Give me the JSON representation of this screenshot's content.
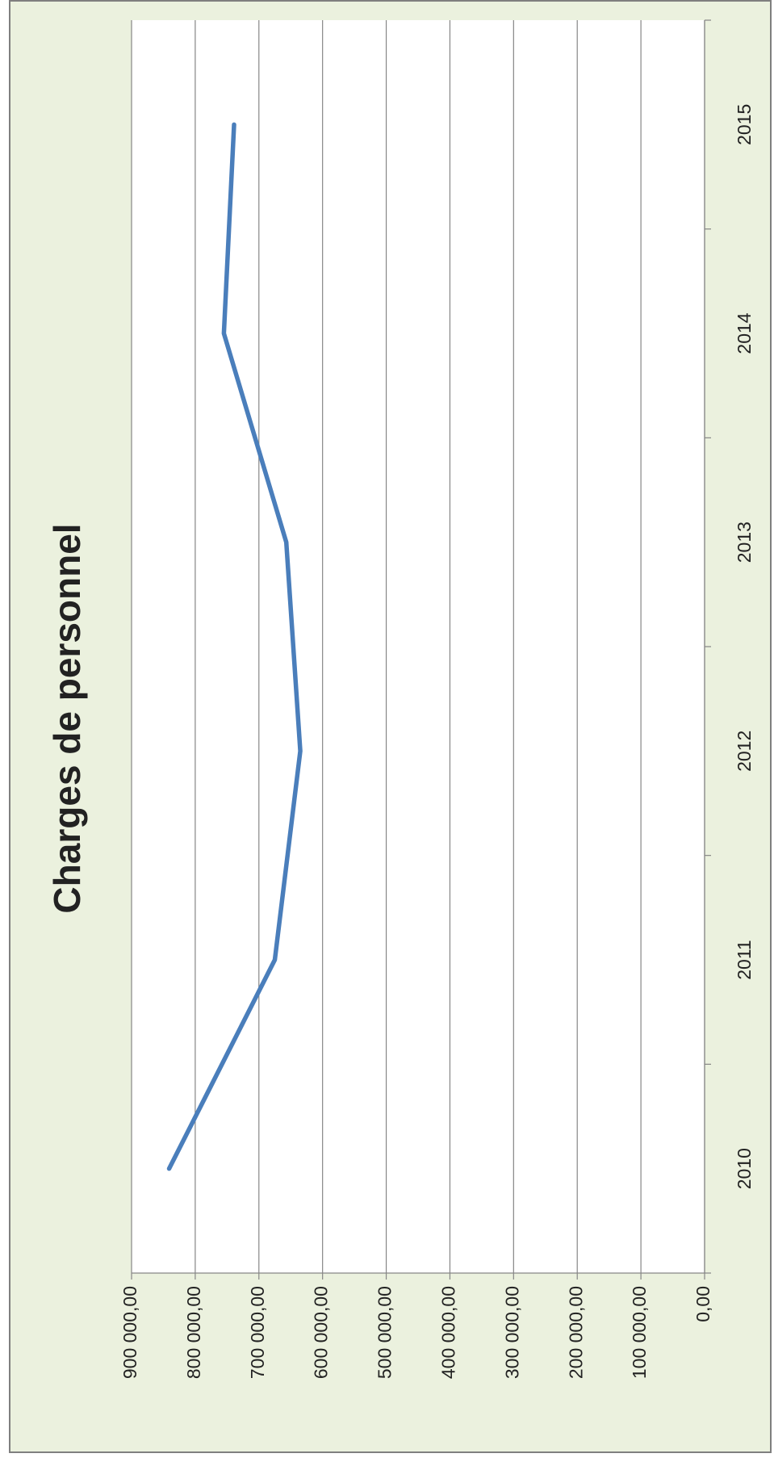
{
  "chart_data": {
    "type": "line",
    "title": "Charges de personnel",
    "categories": [
      "2010",
      "2011",
      "2012",
      "2013",
      "2014",
      "2015"
    ],
    "values": [
      841000,
      675000,
      635000,
      657000,
      755000,
      739000
    ],
    "color": "#4a7ebb",
    "ylim": [
      0,
      900000
    ],
    "yticks": [
      {
        "value": 0,
        "label": "0,00"
      },
      {
        "value": 100000,
        "label": "100 000,00"
      },
      {
        "value": 200000,
        "label": "200 000,00"
      },
      {
        "value": 300000,
        "label": "300 000,00"
      },
      {
        "value": 400000,
        "label": "400 000,00"
      },
      {
        "value": 500000,
        "label": "500 000,00"
      },
      {
        "value": 600000,
        "label": "600 000,00"
      },
      {
        "value": 700000,
        "label": "700 000,00"
      },
      {
        "value": 800000,
        "label": "800 000,00"
      },
      {
        "value": 900000,
        "label": "900 000,00"
      }
    ],
    "grid": true
  }
}
